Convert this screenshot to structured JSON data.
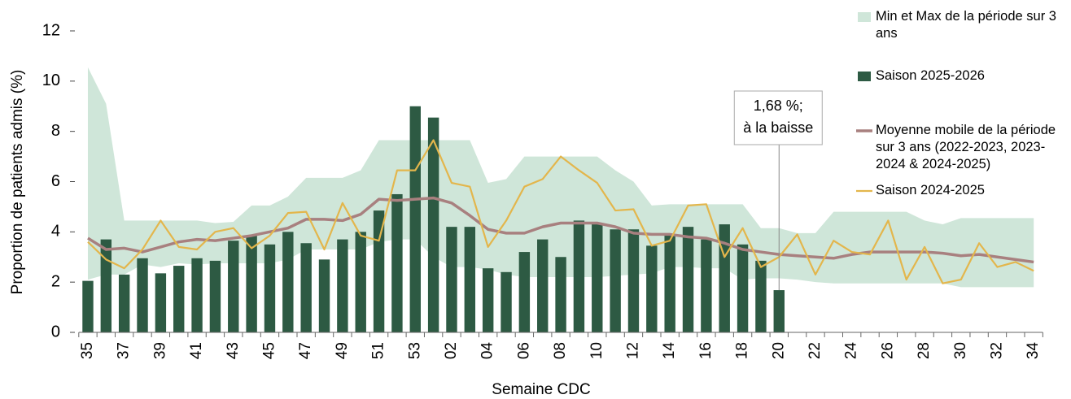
{
  "chart_data": {
    "type": "bar",
    "y_label": "Proportion de patients admis (%)",
    "x_label": "Semaine CDC",
    "categories": [
      "35",
      null,
      "37",
      null,
      "39",
      null,
      "41",
      null,
      "43",
      null,
      "45",
      null,
      "47",
      null,
      "49",
      null,
      "51",
      null,
      "53",
      null,
      "02",
      null,
      "04",
      null,
      "06",
      null,
      "08",
      null,
      "10",
      null,
      "12",
      null,
      "14",
      null,
      "16",
      null,
      "18",
      null,
      "20",
      null,
      "22",
      null,
      "24",
      null,
      "26",
      null,
      "28",
      null,
      "30",
      null,
      "32",
      null,
      "34"
    ],
    "ylim": [
      0,
      12
    ],
    "yticks": [
      0,
      2,
      4,
      6,
      8,
      10,
      12
    ],
    "grid": false,
    "legend": "right",
    "annotation": [
      "1,68 %;",
      "à la baisse"
    ],
    "series": [
      {
        "name": "Min et Max de la période sur 3 ans",
        "kind": "band",
        "color": "#cfe6d9",
        "max": [
          10.55,
          9.1,
          4.45,
          4.45,
          4.45,
          4.45,
          4.45,
          4.35,
          4.4,
          5.05,
          5.05,
          5.4,
          6.15,
          6.15,
          6.15,
          6.45,
          7.65,
          7.65,
          7.65,
          7.65,
          7.65,
          7.65,
          5.95,
          6.1,
          7.0,
          7.0,
          7.0,
          7.0,
          7.0,
          6.45,
          6.0,
          5.05,
          5.1,
          5.1,
          5.1,
          5.1,
          5.1,
          4.15,
          4.15,
          3.95,
          3.95,
          4.8,
          4.8,
          4.8,
          4.8,
          4.8,
          4.45,
          4.3,
          4.55,
          4.55,
          4.55,
          4.55,
          4.55
        ],
        "min": [
          2.1,
          2.3,
          2.3,
          2.7,
          2.6,
          2.75,
          2.7,
          2.75,
          2.75,
          2.75,
          2.75,
          2.9,
          3.3,
          3.3,
          3.3,
          3.3,
          3.6,
          3.7,
          3.7,
          3.0,
          2.6,
          2.6,
          2.5,
          2.3,
          2.2,
          2.2,
          2.2,
          2.2,
          2.2,
          2.25,
          2.3,
          2.35,
          2.6,
          2.6,
          2.55,
          2.55,
          2.1,
          2.15,
          2.15,
          2.1,
          2.0,
          1.95,
          1.95,
          1.95,
          1.95,
          1.95,
          1.95,
          1.95,
          1.8,
          1.8,
          1.8,
          1.8,
          1.8
        ]
      },
      {
        "name": "Saison 2025-2026",
        "kind": "bar",
        "color": "#2d5a43",
        "values": [
          2.05,
          3.7,
          2.3,
          2.95,
          2.35,
          2.65,
          2.95,
          2.85,
          3.65,
          3.85,
          3.5,
          4.0,
          3.55,
          2.9,
          3.7,
          4.0,
          4.85,
          5.5,
          9.0,
          8.55,
          4.2,
          4.2,
          2.55,
          2.4,
          3.2,
          3.7,
          3.0,
          4.45,
          4.35,
          4.1,
          4.1,
          3.45,
          3.85,
          4.2,
          3.7,
          4.3,
          3.5,
          2.85,
          1.68,
          null,
          null,
          null,
          null,
          null,
          null,
          null,
          null,
          null,
          null,
          null,
          null,
          null,
          null
        ]
      },
      {
        "name": "Moyenne mobile de la période sur 3 ans (2022-2023, 2023-2024 & 2024-2025)",
        "kind": "line",
        "color": "#a8807f",
        "width": 3.5,
        "values": [
          3.75,
          3.3,
          3.35,
          3.2,
          3.4,
          3.6,
          3.7,
          3.65,
          3.75,
          3.85,
          4.0,
          4.15,
          4.5,
          4.5,
          4.45,
          4.7,
          5.3,
          5.25,
          5.3,
          5.35,
          5.15,
          4.65,
          4.1,
          3.95,
          3.95,
          4.2,
          4.35,
          4.35,
          4.35,
          4.2,
          3.95,
          3.9,
          3.9,
          3.8,
          3.75,
          3.55,
          3.3,
          3.2,
          3.1,
          3.05,
          3.0,
          2.95,
          3.1,
          3.2,
          3.2,
          3.2,
          3.2,
          3.15,
          3.05,
          3.1,
          3.0,
          2.9,
          2.8
        ]
      },
      {
        "name": "Saison 2024-2025",
        "kind": "line",
        "color": "#e3b64c",
        "width": 2.2,
        "values": [
          3.6,
          2.9,
          2.55,
          3.3,
          4.45,
          3.4,
          3.3,
          4.0,
          4.15,
          3.35,
          3.85,
          4.75,
          4.8,
          3.3,
          5.15,
          3.85,
          3.65,
          6.45,
          6.45,
          7.65,
          5.95,
          5.8,
          3.4,
          4.45,
          5.8,
          6.1,
          7.0,
          6.45,
          5.95,
          4.85,
          4.9,
          3.45,
          3.65,
          5.05,
          5.1,
          3.0,
          4.15,
          2.6,
          3.0,
          3.9,
          2.3,
          3.65,
          3.2,
          3.1,
          4.45,
          2.1,
          3.4,
          1.95,
          2.1,
          3.55,
          2.6,
          2.8,
          2.45
        ]
      }
    ]
  }
}
